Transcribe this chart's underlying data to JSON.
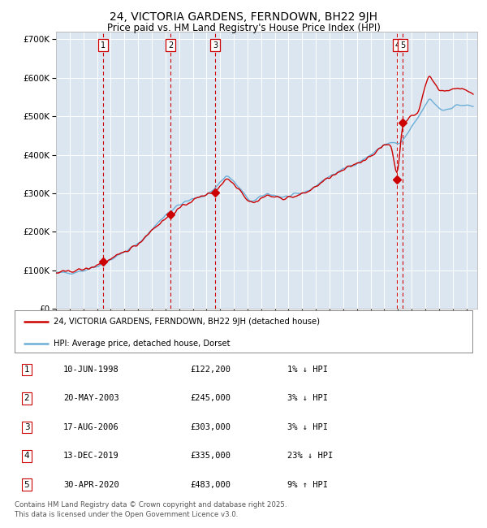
{
  "title": "24, VICTORIA GARDENS, FERNDOWN, BH22 9JH",
  "subtitle": "Price paid vs. HM Land Registry's House Price Index (HPI)",
  "title_fontsize": 10,
  "subtitle_fontsize": 8.5,
  "background_color": "#dce6f1",
  "fig_bg_color": "#ffffff",
  "legend_line1": "24, VICTORIA GARDENS, FERNDOWN, BH22 9JH (detached house)",
  "legend_line2": "HPI: Average price, detached house, Dorset",
  "footer": "Contains HM Land Registry data © Crown copyright and database right 2025.\nThis data is licensed under the Open Government Licence v3.0.",
  "transactions": [
    {
      "num": 1,
      "date": "10-JUN-1998",
      "price": 122200,
      "year": 1998.44,
      "pct": "1%",
      "dir": "↓"
    },
    {
      "num": 2,
      "date": "20-MAY-2003",
      "price": 245000,
      "year": 2003.38,
      "pct": "3%",
      "dir": "↓"
    },
    {
      "num": 3,
      "date": "17-AUG-2006",
      "price": 303000,
      "year": 2006.63,
      "pct": "3%",
      "dir": "↓"
    },
    {
      "num": 4,
      "date": "13-DEC-2019",
      "price": 335000,
      "year": 2019.95,
      "pct": "23%",
      "dir": "↓"
    },
    {
      "num": 5,
      "date": "30-APR-2020",
      "price": 483000,
      "year": 2020.33,
      "pct": "9%",
      "dir": "↑"
    }
  ],
  "hpi_color": "#6baed6",
  "price_color": "#cc0000",
  "vline_color": "#cc0000",
  "marker_color": "#cc0000",
  "ylim": [
    0,
    720000
  ],
  "yticks": [
    0,
    100000,
    200000,
    300000,
    400000,
    500000,
    600000,
    700000
  ],
  "ytick_labels": [
    "£0",
    "£100K",
    "£200K",
    "£300K",
    "£400K",
    "£500K",
    "£600K",
    "£700K"
  ],
  "xlim_start": 1995.0,
  "xlim_end": 2025.8,
  "hpi_anchors_t": [
    1995.0,
    1996.0,
    1997.0,
    1997.5,
    1998.0,
    1999.0,
    2000.0,
    2001.0,
    2002.0,
    2003.0,
    2003.5,
    2004.0,
    2004.5,
    2005.0,
    2005.5,
    2006.0,
    2006.5,
    2007.0,
    2007.5,
    2008.0,
    2008.5,
    2009.0,
    2009.5,
    2010.0,
    2010.5,
    2011.0,
    2011.5,
    2012.0,
    2012.5,
    2013.0,
    2013.5,
    2014.0,
    2014.5,
    2015.0,
    2015.5,
    2016.0,
    2016.5,
    2017.0,
    2017.5,
    2018.0,
    2018.5,
    2019.0,
    2019.5,
    2020.0,
    2020.3,
    2020.5,
    2021.0,
    2021.5,
    2022.0,
    2022.3,
    2022.5,
    2023.0,
    2023.3,
    2023.5,
    2024.0,
    2024.5,
    2025.0,
    2025.5
  ],
  "hpi_anchors_v": [
    93000,
    94000,
    100000,
    105000,
    112000,
    128000,
    148000,
    168000,
    205000,
    245000,
    258000,
    270000,
    278000,
    285000,
    290000,
    298000,
    308000,
    330000,
    348000,
    330000,
    310000,
    285000,
    278000,
    292000,
    300000,
    295000,
    290000,
    292000,
    295000,
    300000,
    308000,
    320000,
    332000,
    345000,
    353000,
    362000,
    372000,
    380000,
    388000,
    400000,
    412000,
    428000,
    432000,
    428000,
    432000,
    445000,
    470000,
    498000,
    528000,
    548000,
    540000,
    522000,
    515000,
    518000,
    525000,
    530000,
    528000,
    525000
  ],
  "price_anchors_t": [
    1995.0,
    1997.5,
    1998.44,
    1999.0,
    2000.0,
    2001.0,
    2002.0,
    2003.38,
    2004.0,
    2004.5,
    2005.0,
    2005.5,
    2006.0,
    2006.63,
    2007.0,
    2007.5,
    2008.0,
    2008.5,
    2009.0,
    2009.5,
    2010.0,
    2010.5,
    2011.0,
    2011.5,
    2012.0,
    2012.5,
    2013.0,
    2013.5,
    2014.0,
    2014.5,
    2015.0,
    2015.5,
    2016.0,
    2016.5,
    2017.0,
    2017.5,
    2018.0,
    2018.5,
    2019.0,
    2019.5,
    2019.95,
    2020.33,
    2021.0,
    2021.5,
    2022.0,
    2022.3,
    2022.5,
    2023.0,
    2023.5,
    2024.0,
    2024.5,
    2025.0,
    2025.5
  ],
  "price_anchors_v": [
    93000,
    105000,
    122200,
    128000,
    148000,
    168000,
    205000,
    245000,
    260000,
    272000,
    282000,
    290000,
    298000,
    303000,
    320000,
    340000,
    325000,
    308000,
    282000,
    275000,
    288000,
    295000,
    290000,
    287000,
    290000,
    292000,
    298000,
    306000,
    318000,
    330000,
    342000,
    350000,
    360000,
    370000,
    378000,
    386000,
    398000,
    410000,
    425000,
    428000,
    335000,
    483000,
    500000,
    510000,
    580000,
    610000,
    595000,
    570000,
    565000,
    570000,
    575000,
    568000,
    560000
  ],
  "table_rows": [
    {
      "num": 1,
      "date": "10-JUN-1998",
      "price": "£122,200",
      "pct": "1%",
      "dir": "↓",
      "label": "HPI"
    },
    {
      "num": 2,
      "date": "20-MAY-2003",
      "price": "£245,000",
      "pct": "3%",
      "dir": "↓",
      "label": "HPI"
    },
    {
      "num": 3,
      "date": "17-AUG-2006",
      "price": "£303,000",
      "pct": "3%",
      "dir": "↓",
      "label": "HPI"
    },
    {
      "num": 4,
      "date": "13-DEC-2019",
      "price": "£335,000",
      "pct": "23%",
      "dir": "↓",
      "label": "HPI"
    },
    {
      "num": 5,
      "date": "30-APR-2020",
      "price": "£483,000",
      "pct": "9%",
      "dir": "↑",
      "label": "HPI"
    }
  ]
}
